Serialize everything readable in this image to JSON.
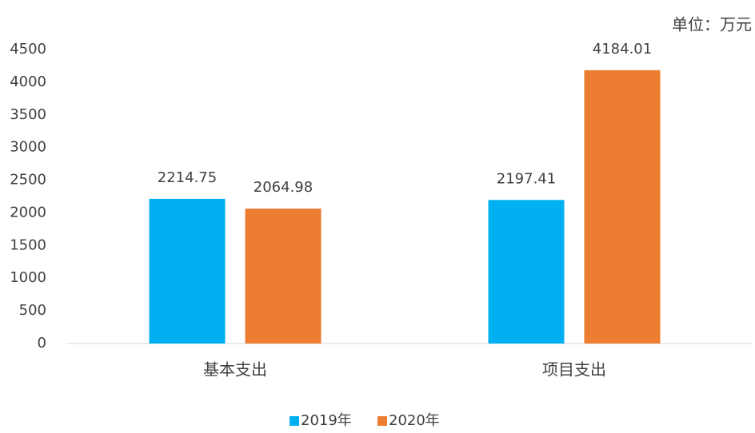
{
  "chart_data": {
    "type": "bar",
    "unit_label": "单位：万元",
    "categories": [
      "基本支出",
      "项目支出"
    ],
    "series": [
      {
        "name": "2019年",
        "color": "#00b0f0",
        "values": [
          2214.75,
          2197.41
        ]
      },
      {
        "name": "2020年",
        "color": "#ed7d31",
        "values": [
          2064.98,
          4184.01
        ]
      }
    ],
    "ylim": [
      0,
      4500
    ],
    "yticks": [
      0,
      500,
      1000,
      1500,
      2000,
      2500,
      3000,
      3500,
      4000,
      4500
    ],
    "grid": false,
    "legend": "bottom"
  }
}
